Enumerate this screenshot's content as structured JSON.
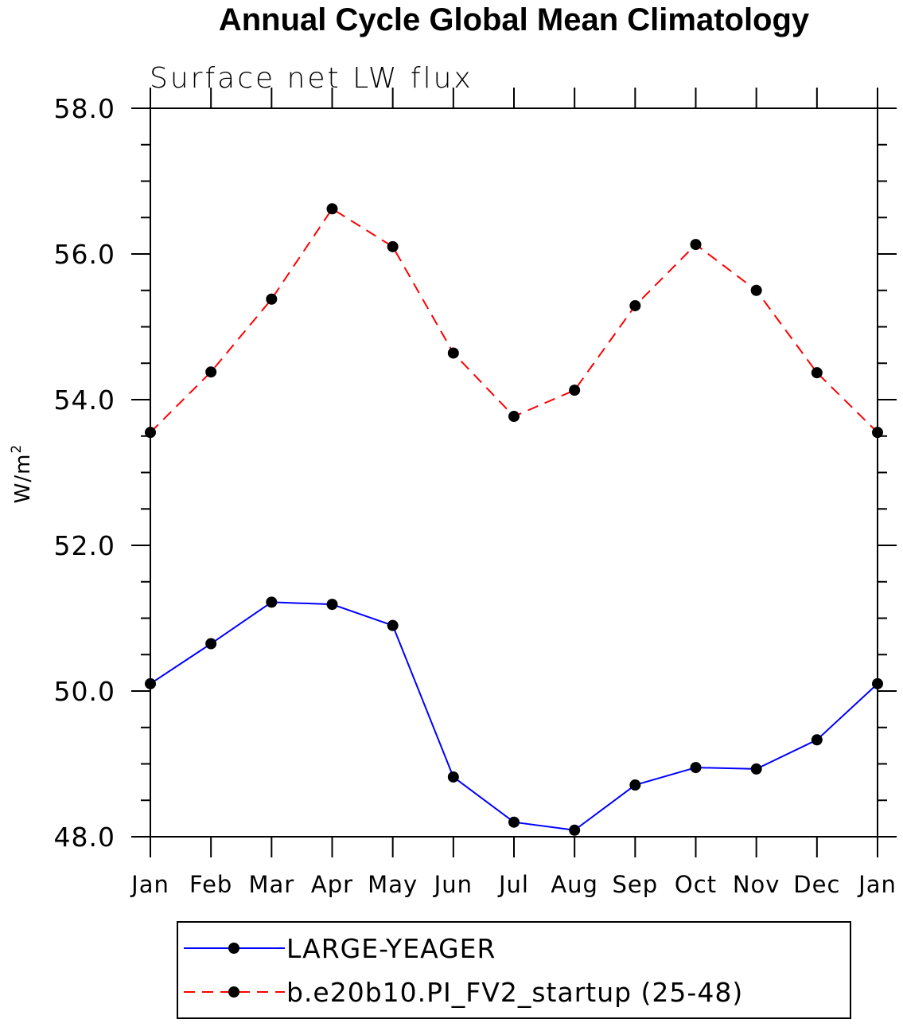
{
  "chart_data": {
    "type": "line",
    "title": "Annual Cycle Global Mean Climatology",
    "subtitle": "Surface net LW flux",
    "ylabel": "W/m",
    "ylabel_superscript": "2",
    "ylim": [
      48.0,
      58.0
    ],
    "yticks": [
      48.0,
      50.0,
      52.0,
      54.0,
      56.0,
      58.0
    ],
    "ytick_labels": [
      "48.0",
      "50.0",
      "52.0",
      "54.0",
      "56.0",
      "58.0"
    ],
    "yminor_step": 0.5,
    "categories": [
      "Jan",
      "Feb",
      "Mar",
      "Apr",
      "May",
      "Jun",
      "Jul",
      "Aug",
      "Sep",
      "Oct",
      "Nov",
      "Dec",
      "Jan"
    ],
    "grid": false,
    "legend_position": "bottom",
    "series": [
      {
        "name": "LARGE-YEAGER",
        "color": "#0000ff",
        "dash": "solid",
        "values": [
          50.1,
          50.65,
          51.22,
          51.19,
          50.9,
          48.82,
          48.2,
          48.09,
          48.71,
          48.95,
          48.93,
          49.33,
          50.1
        ]
      },
      {
        "name": "b.e20b10.PI_FV2_startup (25-48)",
        "color": "#ff0000",
        "dash": "dashed",
        "values": [
          53.55,
          54.38,
          55.38,
          56.62,
          56.1,
          54.64,
          53.77,
          54.13,
          55.29,
          56.13,
          55.5,
          54.37,
          53.55
        ]
      }
    ]
  }
}
